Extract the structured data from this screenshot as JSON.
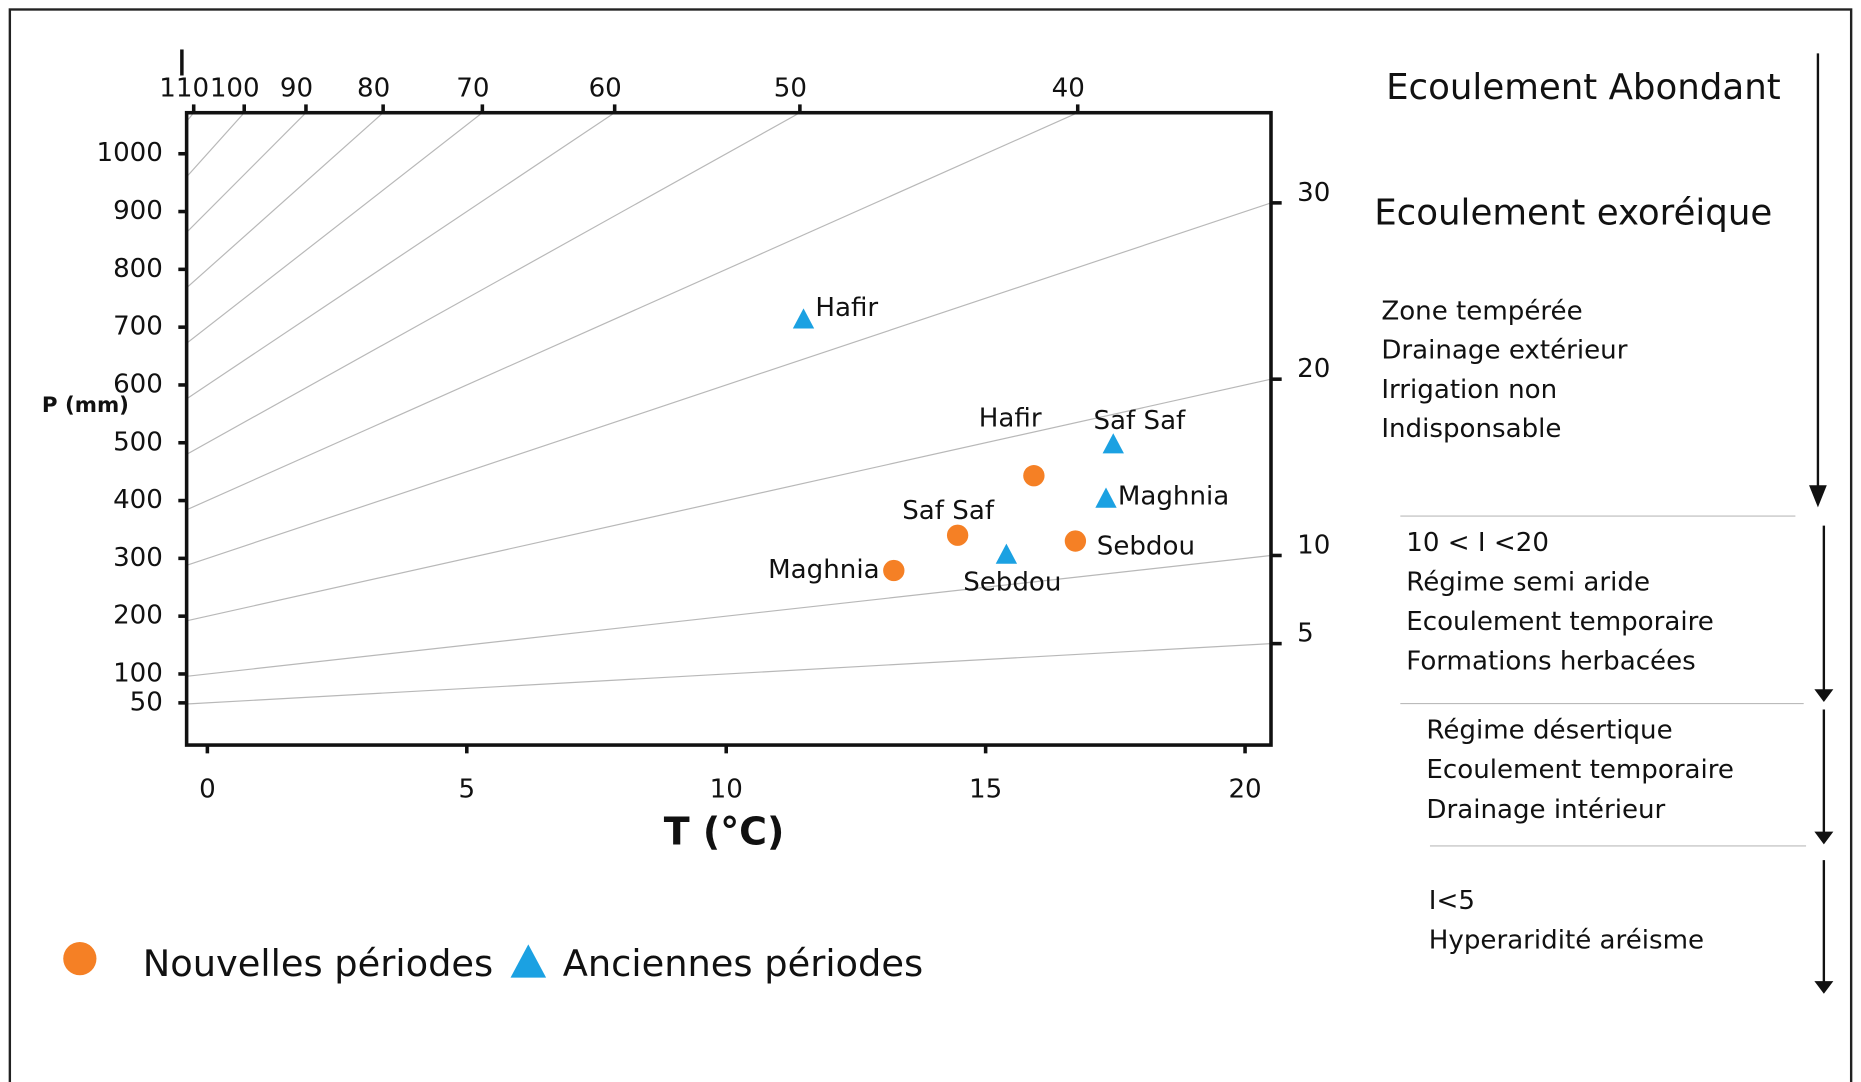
{
  "chart_data": {
    "type": "scatter",
    "x_label": "T (°C)",
    "y_label": "P (mm)",
    "xlim": [
      -0.4,
      20.5
    ],
    "xticks": [
      0,
      5,
      10,
      15,
      20
    ],
    "ylim": [
      -23,
      1071
    ],
    "yticks": [
      50,
      100,
      200,
      300,
      400,
      500,
      600,
      700,
      800,
      900,
      1000
    ],
    "isolines": {
      "name": "I",
      "color": "#b8b8b8",
      "values": [
        5,
        10,
        20,
        30,
        40,
        50,
        60,
        70,
        80,
        90,
        100,
        110
      ]
    },
    "series": [
      {
        "name": "Nouvelles périodes",
        "marker": "circle",
        "color": "#f58025",
        "x": [
          15.93,
          14.46,
          13.23,
          16.73
        ],
        "values": [
          443,
          340,
          279,
          330
        ],
        "labels": [
          "Hafir",
          "Saf Saf",
          "Maghnia",
          "Sebdou"
        ]
      },
      {
        "name": "Anciennes périodes",
        "marker": "triangle",
        "color": "#1ba1e2",
        "x": [
          11.49,
          17.46,
          17.32,
          15.4
        ],
        "values": [
          712,
          496,
          402,
          305
        ],
        "labels": [
          "Hafir",
          "Saf Saf",
          "Maghnia",
          "Sebdou"
        ]
      }
    ],
    "zones": [
      [
        "Ecoulement Abondant"
      ],
      [
        "Ecoulement exoréique"
      ],
      [
        "Zone tempérée",
        "Drainage extérieur",
        "Irrigation non",
        "Indisponsable"
      ],
      [
        "10 < I <20",
        "Régime semi aride",
        "Ecoulement temporaire",
        "Formations herbacées"
      ],
      [
        "Régime désertique",
        "Ecoulement temporaire",
        "Drainage intérieur"
      ],
      [
        "I<5",
        "Hyperaridité aréisme"
      ]
    ]
  }
}
